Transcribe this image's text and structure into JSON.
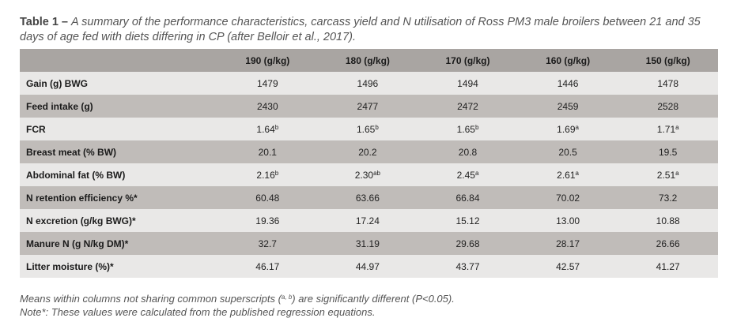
{
  "caption": {
    "label": "Table 1 –",
    "text": "A summary of the performance characteristics, carcass yield and N utilisation of Ross PM3 male broilers between 21 and 35 days of age fed with diets differing in CP (after Belloir et al., 2017)."
  },
  "table": {
    "corner": "",
    "columns": [
      "190 (g/kg)",
      "180 (g/kg)",
      "170 (g/kg)",
      "160 (g/kg)",
      "150 (g/kg)"
    ],
    "rows": [
      {
        "label": "Gain (g) BWG",
        "cells": [
          {
            "v": "1479",
            "sup": ""
          },
          {
            "v": "1496",
            "sup": ""
          },
          {
            "v": "1494",
            "sup": ""
          },
          {
            "v": "1446",
            "sup": ""
          },
          {
            "v": "1478",
            "sup": ""
          }
        ]
      },
      {
        "label": "Feed intake (g)",
        "cells": [
          {
            "v": "2430",
            "sup": ""
          },
          {
            "v": "2477",
            "sup": ""
          },
          {
            "v": "2472",
            "sup": ""
          },
          {
            "v": "2459",
            "sup": ""
          },
          {
            "v": "2528",
            "sup": ""
          }
        ]
      },
      {
        "label": "FCR",
        "cells": [
          {
            "v": "1.64",
            "sup": "b"
          },
          {
            "v": "1.65",
            "sup": "b"
          },
          {
            "v": "1.65",
            "sup": "b"
          },
          {
            "v": "1.69",
            "sup": "a"
          },
          {
            "v": "1.71",
            "sup": "a"
          }
        ]
      },
      {
        "label": "Breast meat (% BW)",
        "cells": [
          {
            "v": "20.1",
            "sup": ""
          },
          {
            "v": "20.2",
            "sup": ""
          },
          {
            "v": "20.8",
            "sup": ""
          },
          {
            "v": "20.5",
            "sup": ""
          },
          {
            "v": "19.5",
            "sup": ""
          }
        ]
      },
      {
        "label": "Abdominal fat (% BW)",
        "cells": [
          {
            "v": "2.16",
            "sup": "b"
          },
          {
            "v": "2.30",
            "sup": "ab"
          },
          {
            "v": "2.45",
            "sup": "a"
          },
          {
            "v": "2.61",
            "sup": "a"
          },
          {
            "v": "2.51",
            "sup": "a"
          }
        ]
      },
      {
        "label": "N retention efficiency %*",
        "cells": [
          {
            "v": "60.48",
            "sup": ""
          },
          {
            "v": "63.66",
            "sup": ""
          },
          {
            "v": "66.84",
            "sup": ""
          },
          {
            "v": "70.02",
            "sup": ""
          },
          {
            "v": "73.2",
            "sup": ""
          }
        ]
      },
      {
        "label": "N excretion (g/kg BWG)*",
        "cells": [
          {
            "v": "19.36",
            "sup": ""
          },
          {
            "v": "17.24",
            "sup": ""
          },
          {
            "v": "15.12",
            "sup": ""
          },
          {
            "v": "13.00",
            "sup": ""
          },
          {
            "v": "10.88",
            "sup": ""
          }
        ]
      },
      {
        "label": "Manure N (g N/kg DM)*",
        "cells": [
          {
            "v": "32.7",
            "sup": ""
          },
          {
            "v": "31.19",
            "sup": ""
          },
          {
            "v": "29.68",
            "sup": ""
          },
          {
            "v": "28.17",
            "sup": ""
          },
          {
            "v": "26.66",
            "sup": ""
          }
        ]
      },
      {
        "label": "Litter moisture (%)*",
        "cells": [
          {
            "v": "46.17",
            "sup": ""
          },
          {
            "v": "44.97",
            "sup": ""
          },
          {
            "v": "43.77",
            "sup": ""
          },
          {
            "v": "42.57",
            "sup": ""
          },
          {
            "v": "41.27",
            "sup": ""
          }
        ]
      }
    ]
  },
  "footnotes": {
    "line1_before": "Means within columns not sharing common superscripts (",
    "line1_sup": "a, b",
    "line1_after": ") are significantly different (P<0.05).",
    "line2": "Note*: These values were calculated from the published regression equations."
  },
  "colors": {
    "header_bg": "#a9a5a2",
    "row_light": "#e9e8e7",
    "row_dark": "#c0bcb9",
    "caption_text": "#555555"
  }
}
